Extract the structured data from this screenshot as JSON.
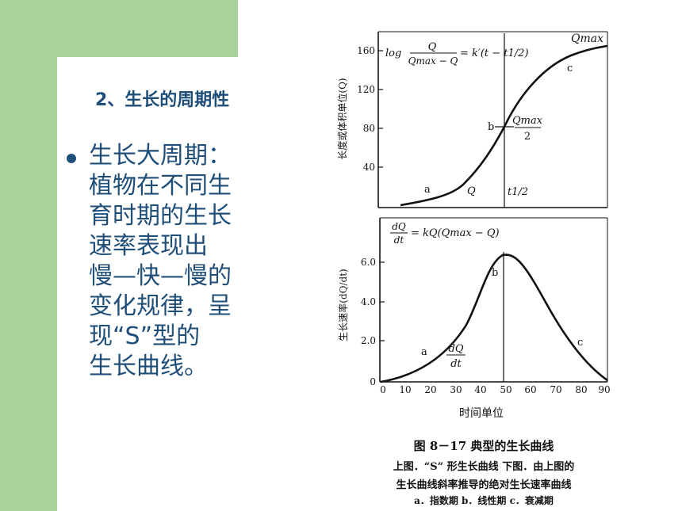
{
  "heading": "2、生长的周期性",
  "bullet": {
    "text": "生长大周期：\n植物在不同生\n育时期的生长\n速率表现出\n慢—快—慢的\n变化规律，呈\n现“S”型的\n生长曲线。"
  },
  "top_chart": {
    "y_label": "长度或体积单位(Q)",
    "y_ticks": [
      "40",
      "80",
      "120",
      "160"
    ],
    "formula": "log Q/(Qmax − Q) = k′(t − t1/2)",
    "labels": {
      "a": "a",
      "b": "b",
      "c": "c",
      "q": "Q",
      "qmax": "Qmax",
      "half": "Qmax/2",
      "t_half": "t1/2"
    }
  },
  "bottom_chart": {
    "y_label": "生长速率(dQ/dt)",
    "y_ticks": [
      "0",
      "2.0",
      "4.0",
      "6.0"
    ],
    "x_ticks": [
      "0",
      "10",
      "20",
      "30",
      "40",
      "50",
      "60",
      "70",
      "80",
      "90"
    ],
    "x_label": "时间单位",
    "formula": "dQ/dt = kQ(Qmax − Q)",
    "labels": {
      "a": "a",
      "b": "b",
      "c": "c",
      "dqdt": "dQ/dt"
    }
  },
  "caption": {
    "title": "图 8－17   典型的生长曲线",
    "line1": "上图．“S” 形生长曲线   下图．由上图的",
    "line2": "生长曲线斜率推导的绝对生长速率曲线",
    "line3": "a．指数期   b．线性期   c．衰减期"
  }
}
